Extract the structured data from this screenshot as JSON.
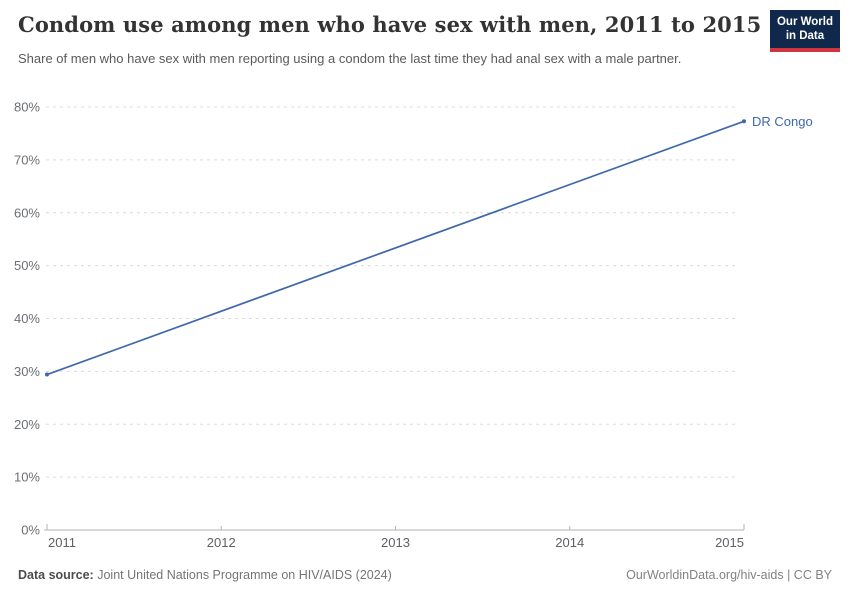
{
  "header": {
    "logo": {
      "line1": "Our World",
      "line2": "in Data"
    }
  },
  "chart_data": {
    "type": "line",
    "title": "Condom use among men who have sex with men, 2011 to 2015",
    "subtitle": "Share of men who have sex with men reporting using a condom the last time they had anal sex with a male partner.",
    "series": [
      {
        "name": "DR Congo",
        "color": "#3e68ac",
        "points": [
          [
            2011,
            29.4
          ],
          [
            2015,
            77.3
          ]
        ]
      }
    ],
    "x_ticks": [
      2011,
      2012,
      2013,
      2014,
      2015
    ],
    "y_ticks": [
      0,
      10,
      20,
      30,
      40,
      50,
      60,
      70,
      80
    ],
    "y_tick_suffix": "%",
    "xlim": [
      2011,
      2015
    ],
    "ylim": [
      0,
      80
    ],
    "xlabel": "",
    "ylabel": "",
    "grid": "horizontal-dashed",
    "legend_position": "end-of-line-label",
    "colors": {
      "gridline": "#dcdcdc",
      "axis": "#b3b3b3",
      "y_tick_label": "#6b6f73",
      "x_tick_label": "#5d6166"
    }
  },
  "footer": {
    "source_label": "Data source:",
    "source_value": "Joint United Nations Programme on HIV/AIDS (2024)",
    "rights": "OurWorldinData.org/hiv-aids | CC BY"
  }
}
